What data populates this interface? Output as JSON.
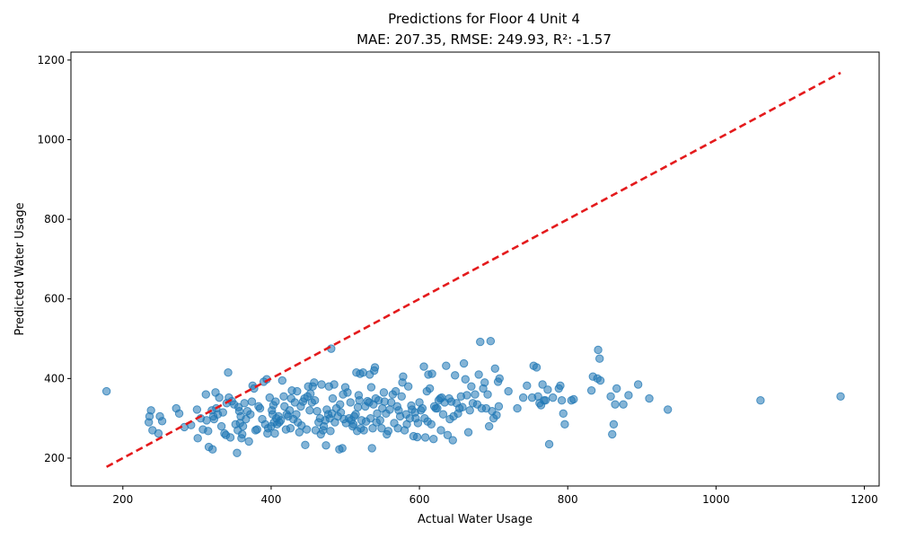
{
  "chart_data": {
    "type": "scatter",
    "title": "Predictions for Floor 4 Unit 4",
    "subtitle": "MAE: 207.35, RMSE: 249.93, R²: -1.57",
    "xlabel": "Actual Water Usage",
    "ylabel": "Predicted Water Usage",
    "xlim": [
      130,
      1220
    ],
    "ylim": [
      130,
      1220
    ],
    "xticks": [
      "200",
      "400",
      "600",
      "800",
      "1000",
      "1200"
    ],
    "yticks": [
      "200",
      "400",
      "600",
      "800",
      "1000",
      "1200"
    ],
    "grid": false,
    "legend": "none",
    "colors": {
      "points": "#1f77b4",
      "reference_line": "#e41a1c"
    },
    "reference_line": {
      "style": "dashed",
      "from": [
        178,
        178
      ],
      "to": [
        1168,
        1168
      ]
    },
    "series": [
      {
        "points": [
          [
            178,
            368
          ],
          [
            235,
            290
          ],
          [
            236,
            305
          ],
          [
            238,
            320
          ],
          [
            240,
            270
          ],
          [
            248,
            262
          ],
          [
            250,
            305
          ],
          [
            253,
            293
          ],
          [
            272,
            325
          ],
          [
            276,
            312
          ],
          [
            283,
            278
          ],
          [
            292,
            283
          ],
          [
            300,
            322
          ],
          [
            301,
            250
          ],
          [
            305,
            300
          ],
          [
            308,
            272
          ],
          [
            312,
            360
          ],
          [
            313,
            295
          ],
          [
            315,
            268
          ],
          [
            316,
            228
          ],
          [
            320,
            320
          ],
          [
            321,
            222
          ],
          [
            322,
            305
          ],
          [
            323,
            298
          ],
          [
            325,
            365
          ],
          [
            326,
            325
          ],
          [
            328,
            310
          ],
          [
            330,
            352
          ],
          [
            333,
            280
          ],
          [
            335,
            315
          ],
          [
            337,
            262
          ],
          [
            339,
            258
          ],
          [
            340,
            338
          ],
          [
            342,
            415
          ],
          [
            343,
            352
          ],
          [
            345,
            252
          ],
          [
            347,
            343
          ],
          [
            350,
            335
          ],
          [
            352,
            285
          ],
          [
            354,
            213
          ],
          [
            355,
            270
          ],
          [
            356,
            328
          ],
          [
            357,
            318
          ],
          [
            358,
            288
          ],
          [
            359,
            305
          ],
          [
            360,
            250
          ],
          [
            361,
            260
          ],
          [
            362,
            280
          ],
          [
            364,
            338
          ],
          [
            366,
            298
          ],
          [
            368,
            318
          ],
          [
            370,
            242
          ],
          [
            372,
            310
          ],
          [
            374,
            342
          ],
          [
            375,
            382
          ],
          [
            377,
            375
          ],
          [
            379,
            270
          ],
          [
            381,
            272
          ],
          [
            383,
            330
          ],
          [
            385,
            325
          ],
          [
            388,
            298
          ],
          [
            390,
            392
          ],
          [
            392,
            285
          ],
          [
            394,
            398
          ],
          [
            395,
            262
          ],
          [
            396,
            275
          ],
          [
            398,
            352
          ],
          [
            400,
            280
          ],
          [
            401,
            320
          ],
          [
            402,
            310
          ],
          [
            403,
            333
          ],
          [
            404,
            290
          ],
          [
            405,
            262
          ],
          [
            406,
            342
          ],
          [
            407,
            300
          ],
          [
            408,
            285
          ],
          [
            410,
            305
          ],
          [
            411,
            290
          ],
          [
            413,
            295
          ],
          [
            415,
            395
          ],
          [
            417,
            355
          ],
          [
            418,
            330
          ],
          [
            420,
            272
          ],
          [
            421,
            310
          ],
          [
            423,
            305
          ],
          [
            425,
            320
          ],
          [
            426,
            275
          ],
          [
            427,
            350
          ],
          [
            428,
            370
          ],
          [
            430,
            298
          ],
          [
            432,
            340
          ],
          [
            434,
            310
          ],
          [
            435,
            368
          ],
          [
            436,
            290
          ],
          [
            438,
            265
          ],
          [
            440,
            330
          ],
          [
            441,
            282
          ],
          [
            443,
            342
          ],
          [
            445,
            350
          ],
          [
            446,
            233
          ],
          [
            448,
            272
          ],
          [
            449,
            355
          ],
          [
            450,
            380
          ],
          [
            452,
            320
          ],
          [
            453,
            362
          ],
          [
            455,
            340
          ],
          [
            456,
            380
          ],
          [
            458,
            390
          ],
          [
            459,
            345
          ],
          [
            460,
            270
          ],
          [
            462,
            318
          ],
          [
            464,
            290
          ],
          [
            466,
            300
          ],
          [
            467,
            260
          ],
          [
            468,
            385
          ],
          [
            470,
            270
          ],
          [
            471,
            280
          ],
          [
            473,
            295
          ],
          [
            474,
            232
          ],
          [
            475,
            322
          ],
          [
            477,
            310
          ],
          [
            478,
            380
          ],
          [
            479,
            300
          ],
          [
            480,
            268
          ],
          [
            481,
            475
          ],
          [
            482,
            312
          ],
          [
            483,
            350
          ],
          [
            485,
            385
          ],
          [
            486,
            290
          ],
          [
            488,
            325
          ],
          [
            490,
            305
          ],
          [
            492,
            222
          ],
          [
            493,
            335
          ],
          [
            494,
            315
          ],
          [
            496,
            225
          ],
          [
            497,
            360
          ],
          [
            498,
            298
          ],
          [
            500,
            378
          ],
          [
            501,
            288
          ],
          [
            503,
            365
          ],
          [
            505,
            300
          ],
          [
            507,
            340
          ],
          [
            508,
            295
          ],
          [
            510,
            280
          ],
          [
            511,
            285
          ],
          [
            512,
            305
          ],
          [
            514,
            310
          ],
          [
            515,
            415
          ],
          [
            516,
            268
          ],
          [
            517,
            328
          ],
          [
            518,
            358
          ],
          [
            519,
            345
          ],
          [
            520,
            412
          ],
          [
            521,
            275
          ],
          [
            522,
            295
          ],
          [
            524,
            415
          ],
          [
            525,
            270
          ],
          [
            527,
            330
          ],
          [
            528,
            292
          ],
          [
            530,
            343
          ],
          [
            532,
            340
          ],
          [
            533,
            410
          ],
          [
            534,
            300
          ],
          [
            535,
            378
          ],
          [
            536,
            225
          ],
          [
            537,
            275
          ],
          [
            538,
            335
          ],
          [
            539,
            420
          ],
          [
            540,
            428
          ],
          [
            541,
            350
          ],
          [
            542,
            290
          ],
          [
            543,
            312
          ],
          [
            545,
            345
          ],
          [
            547,
            295
          ],
          [
            549,
            275
          ],
          [
            550,
            325
          ],
          [
            552,
            365
          ],
          [
            553,
            342
          ],
          [
            555,
            312
          ],
          [
            556,
            260
          ],
          [
            558,
            268
          ],
          [
            560,
            322
          ],
          [
            562,
            340
          ],
          [
            564,
            360
          ],
          [
            566,
            288
          ],
          [
            568,
            368
          ],
          [
            570,
            330
          ],
          [
            571,
            275
          ],
          [
            572,
            320
          ],
          [
            574,
            305
          ],
          [
            576,
            355
          ],
          [
            577,
            390
          ],
          [
            578,
            405
          ],
          [
            580,
            270
          ],
          [
            582,
            310
          ],
          [
            583,
            285
          ],
          [
            585,
            380
          ],
          [
            587,
            300
          ],
          [
            589,
            332
          ],
          [
            590,
            322
          ],
          [
            592,
            255
          ],
          [
            594,
            315
          ],
          [
            595,
            300
          ],
          [
            597,
            253
          ],
          [
            598,
            288
          ],
          [
            600,
            340
          ],
          [
            602,
            320
          ],
          [
            604,
            325
          ],
          [
            606,
            430
          ],
          [
            607,
            300
          ],
          [
            608,
            252
          ],
          [
            610,
            368
          ],
          [
            611,
            292
          ],
          [
            612,
            410
          ],
          [
            614,
            375
          ],
          [
            616,
            285
          ],
          [
            617,
            412
          ],
          [
            619,
            248
          ],
          [
            620,
            330
          ],
          [
            622,
            325
          ],
          [
            624,
            325
          ],
          [
            626,
            345
          ],
          [
            628,
            350
          ],
          [
            629,
            270
          ],
          [
            630,
            352
          ],
          [
            632,
            310
          ],
          [
            634,
            340
          ],
          [
            636,
            432
          ],
          [
            638,
            258
          ],
          [
            640,
            350
          ],
          [
            641,
            298
          ],
          [
            643,
            342
          ],
          [
            645,
            245
          ],
          [
            646,
            305
          ],
          [
            648,
            408
          ],
          [
            650,
            338
          ],
          [
            652,
            312
          ],
          [
            654,
            325
          ],
          [
            656,
            355
          ],
          [
            658,
            328
          ],
          [
            660,
            438
          ],
          [
            662,
            398
          ],
          [
            664,
            358
          ],
          [
            666,
            265
          ],
          [
            668,
            320
          ],
          [
            670,
            380
          ],
          [
            672,
            338
          ],
          [
            675,
            360
          ],
          [
            678,
            335
          ],
          [
            680,
            410
          ],
          [
            682,
            492
          ],
          [
            684,
            325
          ],
          [
            686,
            375
          ],
          [
            688,
            390
          ],
          [
            690,
            325
          ],
          [
            692,
            360
          ],
          [
            694,
            280
          ],
          [
            696,
            494
          ],
          [
            698,
            318
          ],
          [
            700,
            300
          ],
          [
            702,
            425
          ],
          [
            704,
            308
          ],
          [
            706,
            392
          ],
          [
            707,
            330
          ],
          [
            708,
            400
          ],
          [
            720,
            368
          ],
          [
            732,
            325
          ],
          [
            740,
            352
          ],
          [
            745,
            382
          ],
          [
            752,
            352
          ],
          [
            754,
            432
          ],
          [
            758,
            428
          ],
          [
            760,
            355
          ],
          [
            762,
            338
          ],
          [
            764,
            333
          ],
          [
            766,
            385
          ],
          [
            768,
            345
          ],
          [
            770,
            345
          ],
          [
            773,
            372
          ],
          [
            775,
            235
          ],
          [
            780,
            352
          ],
          [
            788,
            375
          ],
          [
            790,
            382
          ],
          [
            792,
            345
          ],
          [
            794,
            312
          ],
          [
            796,
            285
          ],
          [
            805,
            345
          ],
          [
            808,
            348
          ],
          [
            832,
            370
          ],
          [
            834,
            405
          ],
          [
            840,
            400
          ],
          [
            841,
            472
          ],
          [
            843,
            450
          ],
          [
            844,
            395
          ],
          [
            858,
            355
          ],
          [
            860,
            260
          ],
          [
            862,
            285
          ],
          [
            864,
            335
          ],
          [
            866,
            375
          ],
          [
            875,
            335
          ],
          [
            882,
            358
          ],
          [
            895,
            385
          ],
          [
            910,
            350
          ],
          [
            935,
            322
          ],
          [
            1060,
            345
          ],
          [
            1168,
            355
          ]
        ]
      }
    ]
  }
}
